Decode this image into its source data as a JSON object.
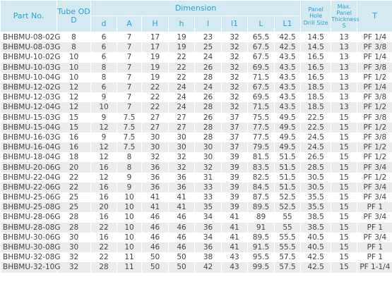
{
  "table": {
    "header": {
      "part_no": "Part No.",
      "tube_od": "Tube OD\nD",
      "dimension": "Dimension",
      "sub": [
        "d",
        "A",
        "H",
        "h",
        "l",
        "l1",
        "L",
        "L1"
      ],
      "drill": "Panel\nHole\nDrill Size",
      "thickness": "Max. Panel\nThickness\nS",
      "t": "T"
    },
    "rows": [
      [
        "BHBMU-08-02G",
        "8",
        "6",
        "7",
        "17",
        "19",
        "23",
        "32",
        "65.5",
        "42.5",
        "14.5",
        "13",
        "PF 1/4"
      ],
      [
        "BHBMU-08-03G",
        "8",
        "6",
        "7",
        "17",
        "19",
        "25",
        "32",
        "67.5",
        "42.5",
        "14.5",
        "13",
        "PF 3/8"
      ],
      [
        "BHBMU-10-02G",
        "10",
        "6",
        "7",
        "19",
        "22",
        "24",
        "32",
        "67.5",
        "43.5",
        "16.5",
        "13",
        "PF 1/4"
      ],
      [
        "BHBMU-10-03G",
        "10",
        "8",
        "7",
        "19",
        "22",
        "26",
        "32",
        "69.5",
        "43.5",
        "16.5",
        "13",
        "PF 3/8"
      ],
      [
        "BHBMU-10-04G",
        "10",
        "8",
        "7",
        "19",
        "22",
        "28",
        "32",
        "71.5",
        "43.5",
        "16.5",
        "13",
        "PF 1/2"
      ],
      [
        "BHBMU-12-02G",
        "12",
        "6",
        "7",
        "22",
        "24",
        "24",
        "32",
        "67.5",
        "43.5",
        "18.5",
        "13",
        "PF 1/4"
      ],
      [
        "BHBMU-12-03G",
        "12",
        "9",
        "7",
        "22",
        "24",
        "26",
        "32",
        "69.5",
        "43.5",
        "18.5",
        "13",
        "PF 3/8"
      ],
      [
        "BHBMU-12-04G",
        "12",
        "10",
        "7",
        "22",
        "24",
        "28",
        "32",
        "71.5",
        "43.5",
        "18.5",
        "13",
        "PF 1/2"
      ],
      [
        "BHBMU-15-03G",
        "15",
        "9",
        "7.5",
        "27",
        "27",
        "26",
        "37",
        "75.5",
        "49.5",
        "22.5",
        "15",
        "PF 3/8"
      ],
      [
        "BHBMU-15-04G",
        "15",
        "12",
        "7.5",
        "27",
        "27",
        "28",
        "37",
        "77.5",
        "49.5",
        "22.5",
        "15",
        "PF 1/2"
      ],
      [
        "BHBMU-16-03G",
        "16",
        "9",
        "7.5",
        "30",
        "30",
        "28",
        "37",
        "77.5",
        "49.5",
        "24.5",
        "15",
        "PF 3/8"
      ],
      [
        "BHBMU-16-04G",
        "16",
        "12",
        "7.5",
        "30",
        "30",
        "30",
        "37",
        "79.5",
        "49.5",
        "24.5",
        "15",
        "PF 1/2"
      ],
      [
        "BHBMU-18-04G",
        "18",
        "12",
        "8",
        "32",
        "32",
        "30",
        "39",
        "81.5",
        "51.5",
        "26.5",
        "15",
        "PF 1/2"
      ],
      [
        "BHBMU-20-06G",
        "20",
        "16",
        "8",
        "36",
        "32",
        "32",
        "39",
        "83.5",
        "51.5",
        "28.5",
        "15",
        "PF 3/4"
      ],
      [
        "BHBMU-22-04G",
        "22",
        "12",
        "9",
        "36",
        "36",
        "31",
        "39",
        "82.5",
        "51.5",
        "30.5",
        "15",
        "PF 1/2"
      ],
      [
        "BHBMU-22-06G",
        "22",
        "16",
        "9",
        "36",
        "36",
        "33",
        "39",
        "84.5",
        "51.5",
        "30.5",
        "15",
        "PF 3/4"
      ],
      [
        "BHBMU-25-06G",
        "25",
        "16",
        "10",
        "41",
        "41",
        "33",
        "39",
        "87.5",
        "52.5",
        "35.5",
        "15",
        "PF 3/4"
      ],
      [
        "BHBMU-25-08G",
        "25",
        "20",
        "10",
        "41",
        "41",
        "35",
        "39",
        "89.5",
        "52.5",
        "35.5",
        "15",
        "PF 1"
      ],
      [
        "BHBMU-28-06G",
        "28",
        "16",
        "10",
        "46",
        "46",
        "34",
        "41",
        "89",
        "55",
        "38.5",
        "15",
        "PF 3/4"
      ],
      [
        "BHBMU-28-08G",
        "28",
        "22",
        "10",
        "46",
        "46",
        "36",
        "41",
        "91",
        "55",
        "38.5",
        "15",
        "PF 1"
      ],
      [
        "BHBMU-30-06G",
        "30",
        "16",
        "10",
        "46",
        "46",
        "34",
        "41",
        "89.5",
        "55.5",
        "40.5",
        "15",
        "PF 3/4"
      ],
      [
        "BHBMU-30-08G",
        "30",
        "22",
        "10",
        "46",
        "46",
        "36",
        "41",
        "91.5",
        "55.5",
        "40.5",
        "15",
        "PF 1"
      ],
      [
        "BHBMU-32-08G",
        "32",
        "22",
        "11",
        "50",
        "50",
        "38",
        "43",
        "95.5",
        "57.5",
        "42.5",
        "15",
        "PF 1"
      ],
      [
        "BHBMU-32-10G",
        "32",
        "28",
        "11",
        "50",
        "50",
        "42",
        "43",
        "99.5",
        "57.5",
        "42.5",
        "15",
        "PF 1-1/4"
      ]
    ]
  }
}
